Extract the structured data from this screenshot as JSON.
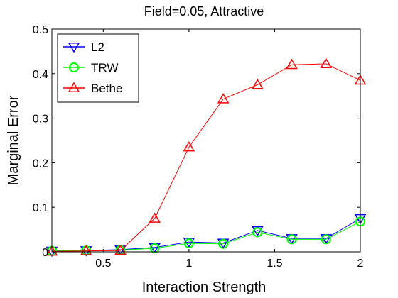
{
  "chart_data": {
    "type": "line",
    "title": "Field=0.05, Attractive",
    "xlabel": "Interaction Strength",
    "ylabel": "Marginal Error",
    "xlim": [
      0.2,
      2
    ],
    "ylim": [
      0,
      0.5
    ],
    "xticks": [
      0.5,
      1,
      1.5,
      2
    ],
    "yticks": [
      0,
      0.1,
      0.2,
      0.3,
      0.4,
      0.5
    ],
    "x": [
      0.2,
      0.4,
      0.6,
      0.8,
      1.0,
      1.2,
      1.4,
      1.6,
      1.8,
      2.0
    ],
    "grid": false,
    "legend_position": "top-left",
    "series": [
      {
        "name": "L2",
        "color": "#0000ff",
        "marker": "triangle-down",
        "values": [
          0.002,
          0.003,
          0.005,
          0.01,
          0.022,
          0.02,
          0.048,
          0.03,
          0.03,
          0.075
        ]
      },
      {
        "name": "TRW",
        "color": "#00ff00",
        "marker": "circle",
        "values": [
          0.002,
          0.003,
          0.004,
          0.008,
          0.019,
          0.018,
          0.044,
          0.028,
          0.028,
          0.068
        ]
      },
      {
        "name": "Bethe",
        "color": "#ff0000",
        "marker": "triangle-up",
        "values": [
          0.001,
          0.002,
          0.003,
          0.075,
          0.235,
          0.343,
          0.375,
          0.42,
          0.422,
          0.385
        ]
      }
    ]
  }
}
